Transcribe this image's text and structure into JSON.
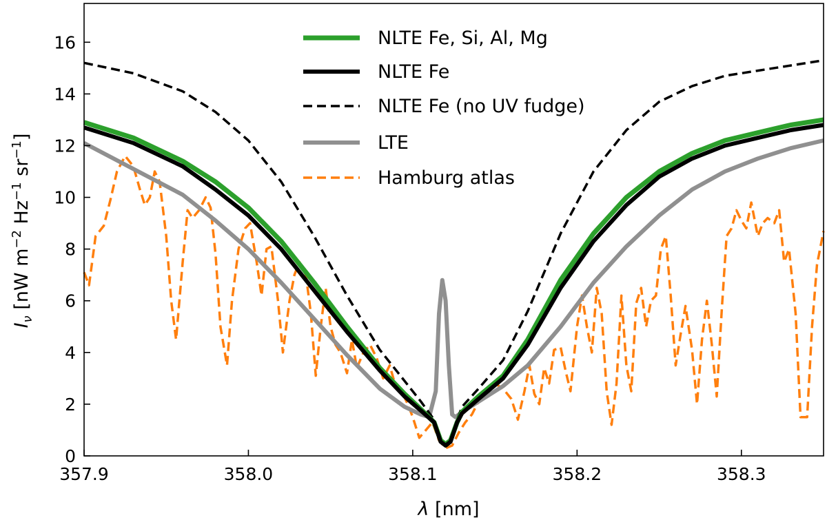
{
  "chart_data": {
    "type": "line",
    "title": "",
    "xlabel_symbol": "λ",
    "xlabel_unit": "[nm]",
    "ylabel_symbol": "I",
    "ylabel_subscript": "ν",
    "ylabel_unit_prefix": "[nW m",
    "ylabel_exp1": "−2",
    "ylabel_mid": " Hz",
    "ylabel_exp2": "−1",
    "ylabel_mid2": " sr",
    "ylabel_exp3": "−1",
    "ylabel_close": "]",
    "xlim": [
      357.9,
      358.35
    ],
    "ylim": [
      0,
      17.5
    ],
    "xticks": [
      357.9,
      358.0,
      358.1,
      358.2,
      358.3
    ],
    "xtick_labels": [
      "357.9",
      "358.0",
      "358.1",
      "358.2",
      "358.3"
    ],
    "yticks": [
      0,
      2,
      4,
      6,
      8,
      10,
      12,
      14,
      16
    ],
    "ytick_labels": [
      "0",
      "2",
      "4",
      "6",
      "8",
      "10",
      "12",
      "14",
      "16"
    ],
    "grid": false,
    "legend_position": "top-center",
    "series": [
      {
        "name": "NLTE Fe, Si, Al, Mg",
        "color": "#2ca02c",
        "style": "solid",
        "x": [
          357.9,
          357.93,
          357.96,
          357.98,
          358.0,
          358.02,
          358.04,
          358.06,
          358.08,
          358.095,
          358.105,
          358.113,
          358.117,
          358.12,
          358.123,
          358.127,
          358.13,
          358.14,
          358.155,
          358.17,
          358.19,
          358.21,
          358.23,
          358.25,
          358.27,
          358.29,
          358.31,
          358.33,
          358.35
        ],
        "values": [
          12.9,
          12.3,
          11.4,
          10.6,
          9.6,
          8.3,
          6.7,
          5.0,
          3.4,
          2.4,
          1.8,
          1.3,
          0.6,
          0.45,
          0.6,
          1.3,
          1.7,
          2.3,
          3.1,
          4.5,
          6.8,
          8.6,
          10.0,
          11.0,
          11.7,
          12.2,
          12.5,
          12.8,
          13.0
        ]
      },
      {
        "name": "NLTE Fe",
        "color": "#000000",
        "style": "solid",
        "x": [
          357.9,
          357.93,
          357.96,
          357.98,
          358.0,
          358.02,
          358.04,
          358.06,
          358.08,
          358.095,
          358.105,
          358.113,
          358.117,
          358.12,
          358.123,
          358.127,
          358.13,
          358.14,
          358.155,
          358.17,
          358.19,
          358.21,
          358.23,
          358.25,
          358.27,
          358.29,
          358.31,
          358.33,
          358.35
        ],
        "values": [
          12.7,
          12.1,
          11.2,
          10.3,
          9.3,
          8.0,
          6.4,
          4.8,
          3.3,
          2.3,
          1.75,
          1.3,
          0.55,
          0.4,
          0.55,
          1.3,
          1.65,
          2.2,
          3.0,
          4.3,
          6.5,
          8.3,
          9.7,
          10.8,
          11.5,
          12.0,
          12.3,
          12.6,
          12.8
        ]
      },
      {
        "name": "NLTE Fe (no UV fudge)",
        "color": "#000000",
        "style": "dashed",
        "x": [
          357.9,
          357.93,
          357.96,
          357.98,
          358.0,
          358.02,
          358.04,
          358.06,
          358.08,
          358.095,
          358.105,
          358.113,
          358.117,
          358.12,
          358.123,
          358.127,
          358.13,
          358.14,
          358.155,
          358.17,
          358.19,
          358.21,
          358.23,
          358.25,
          358.27,
          358.29,
          358.31,
          358.33,
          358.35
        ],
        "values": [
          15.2,
          14.8,
          14.1,
          13.3,
          12.2,
          10.6,
          8.5,
          6.2,
          4.1,
          2.9,
          2.1,
          1.4,
          0.6,
          0.45,
          0.6,
          1.4,
          1.9,
          2.6,
          3.7,
          5.6,
          8.6,
          11.0,
          12.6,
          13.7,
          14.3,
          14.7,
          14.9,
          15.1,
          15.3
        ]
      },
      {
        "name": "LTE",
        "color": "#909090",
        "style": "solid",
        "x": [
          357.9,
          357.93,
          357.96,
          357.98,
          358.0,
          358.02,
          358.04,
          358.06,
          358.08,
          358.095,
          358.105,
          358.11,
          358.114,
          358.116,
          358.118,
          358.12,
          358.122,
          358.124,
          358.126,
          358.13,
          358.14,
          358.155,
          358.17,
          358.19,
          358.21,
          358.23,
          358.25,
          358.27,
          358.29,
          358.31,
          358.33,
          358.35
        ],
        "values": [
          12.1,
          11.1,
          10.1,
          9.1,
          8.0,
          6.7,
          5.3,
          3.9,
          2.6,
          1.9,
          1.6,
          1.5,
          2.5,
          5.5,
          6.8,
          6.0,
          3.5,
          1.6,
          1.5,
          1.7,
          2.1,
          2.7,
          3.5,
          5.0,
          6.7,
          8.1,
          9.3,
          10.3,
          11.0,
          11.5,
          11.9,
          12.2
        ]
      },
      {
        "name": "Hamburg atlas",
        "color": "#ff7f0e",
        "style": "dashed",
        "x": [
          357.9,
          357.903,
          357.907,
          357.912,
          357.916,
          357.92,
          357.925,
          357.93,
          357.934,
          357.937,
          357.94,
          357.943,
          357.946,
          357.95,
          357.953,
          357.956,
          357.96,
          357.963,
          357.966,
          357.97,
          357.974,
          357.977,
          357.98,
          357.983,
          357.987,
          357.99,
          357.994,
          357.998,
          358.001,
          358.005,
          358.008,
          358.011,
          358.014,
          358.018,
          358.021,
          358.025,
          358.028,
          358.031,
          358.035,
          358.038,
          358.041,
          358.044,
          358.047,
          358.05,
          358.053,
          358.056,
          358.06,
          358.063,
          358.066,
          358.07,
          358.074,
          358.078,
          358.082,
          358.086,
          358.09,
          358.094,
          358.097,
          358.1,
          358.104,
          358.108,
          358.112,
          358.116,
          358.12,
          358.124,
          358.128,
          358.132,
          358.136,
          358.14,
          358.145,
          358.15,
          358.155,
          358.16,
          358.164,
          358.168,
          358.171,
          358.174,
          358.177,
          358.18,
          358.183,
          358.186,
          358.19,
          358.193,
          358.196,
          358.2,
          358.203,
          358.206,
          358.209,
          358.212,
          358.215,
          358.218,
          358.221,
          358.224,
          358.227,
          358.23,
          358.233,
          358.236,
          358.239,
          358.242,
          358.245,
          358.248,
          358.251,
          358.254,
          358.257,
          358.26,
          358.263,
          358.266,
          358.27,
          358.273,
          358.276,
          358.279,
          358.282,
          358.285,
          358.288,
          358.291,
          358.294,
          358.297,
          358.3,
          358.303,
          358.306,
          358.31,
          358.313,
          358.316,
          358.32,
          358.323,
          358.326,
          358.329,
          358.333,
          358.336,
          358.34,
          358.343,
          358.346,
          358.35
        ],
        "values": [
          7.1,
          6.6,
          8.5,
          8.9,
          9.9,
          11.0,
          11.6,
          11.2,
          10.3,
          9.7,
          10.0,
          11.0,
          10.6,
          8.5,
          6.0,
          4.5,
          7.5,
          9.5,
          9.2,
          9.5,
          10.0,
          9.6,
          7.8,
          5.0,
          3.5,
          6.0,
          8.0,
          8.8,
          9.0,
          7.5,
          6.2,
          8.0,
          8.1,
          6.0,
          4.0,
          6.0,
          7.0,
          7.5,
          7.0,
          5.5,
          3.1,
          5.0,
          6.5,
          5.0,
          4.3,
          4.0,
          3.2,
          4.5,
          3.4,
          4.0,
          4.3,
          3.8,
          3.0,
          3.5,
          2.6,
          2.4,
          2.0,
          1.5,
          0.7,
          1.0,
          1.3,
          0.6,
          0.3,
          0.4,
          0.9,
          1.3,
          1.6,
          2.1,
          2.4,
          2.8,
          2.6,
          2.2,
          1.4,
          2.5,
          3.5,
          2.4,
          2.0,
          3.4,
          2.8,
          4.1,
          4.2,
          3.3,
          2.5,
          5.0,
          6.2,
          5.0,
          4.0,
          6.5,
          5.5,
          2.5,
          1.2,
          2.8,
          6.2,
          3.5,
          2.5,
          5.9,
          6.5,
          5.0,
          6.0,
          6.2,
          8.0,
          8.5,
          6.2,
          3.5,
          4.7,
          5.8,
          4.1,
          2.0,
          4.5,
          6.0,
          4.3,
          2.3,
          5.6,
          8.5,
          8.8,
          9.5,
          9.1,
          8.8,
          9.8,
          8.5,
          9.0,
          9.2,
          9.0,
          9.5,
          7.5,
          8.0,
          5.5,
          1.5,
          1.5,
          5.0,
          7.4,
          8.7
        ]
      }
    ]
  }
}
